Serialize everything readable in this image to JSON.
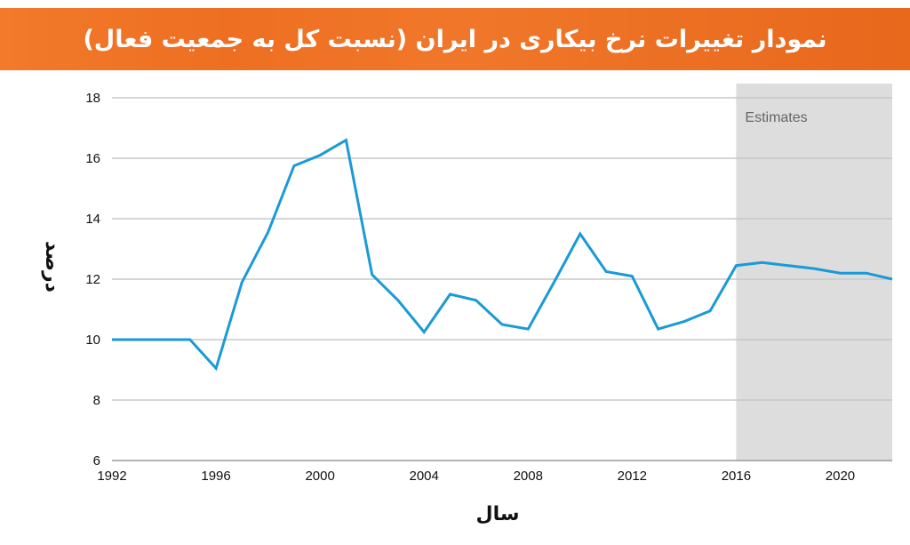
{
  "title": "نمودار تغییرات نرخ بیکاری در ایران (نسبت کل به جمعیت فعال)",
  "colors": {
    "banner": "#ee6f22",
    "line": "#1a9ad6",
    "grid": "#c8c8c8",
    "estimate_band": "#dddddd"
  },
  "chart_data": {
    "type": "line",
    "title": "نمودار تغییرات نرخ بیکاری در ایران (نسبت کل به جمعیت فعال)",
    "xlabel": "سال",
    "ylabel": "درصد",
    "xlim": [
      1992,
      2022
    ],
    "ylim": [
      6,
      18
    ],
    "xticks": [
      1992,
      1996,
      2000,
      2004,
      2008,
      2012,
      2016,
      2020
    ],
    "yticks": [
      6,
      8,
      10,
      12,
      14,
      16,
      18
    ],
    "grid": "horizontal",
    "annotation": {
      "text": "Estimates",
      "from": 2016,
      "to": 2022
    },
    "series": [
      {
        "x": [
          1992,
          1993,
          1994,
          1995,
          1996,
          1997,
          1998,
          1999,
          2000,
          2001,
          2002,
          2003,
          2004,
          2005,
          2006,
          2007,
          2008,
          2009,
          2010,
          2011,
          2012,
          2013,
          2014,
          2015,
          2016,
          2017,
          2018,
          2019,
          2020,
          2021,
          2022
        ],
        "y": [
          10.0,
          10.0,
          10.0,
          10.0,
          9.05,
          11.9,
          13.55,
          15.75,
          16.1,
          16.6,
          12.15,
          11.3,
          10.25,
          11.5,
          11.3,
          10.5,
          10.35,
          11.9,
          13.5,
          12.25,
          12.1,
          10.35,
          10.6,
          10.95,
          12.45,
          12.55,
          12.45,
          12.35,
          12.2,
          12.2,
          12.0
        ]
      }
    ]
  }
}
